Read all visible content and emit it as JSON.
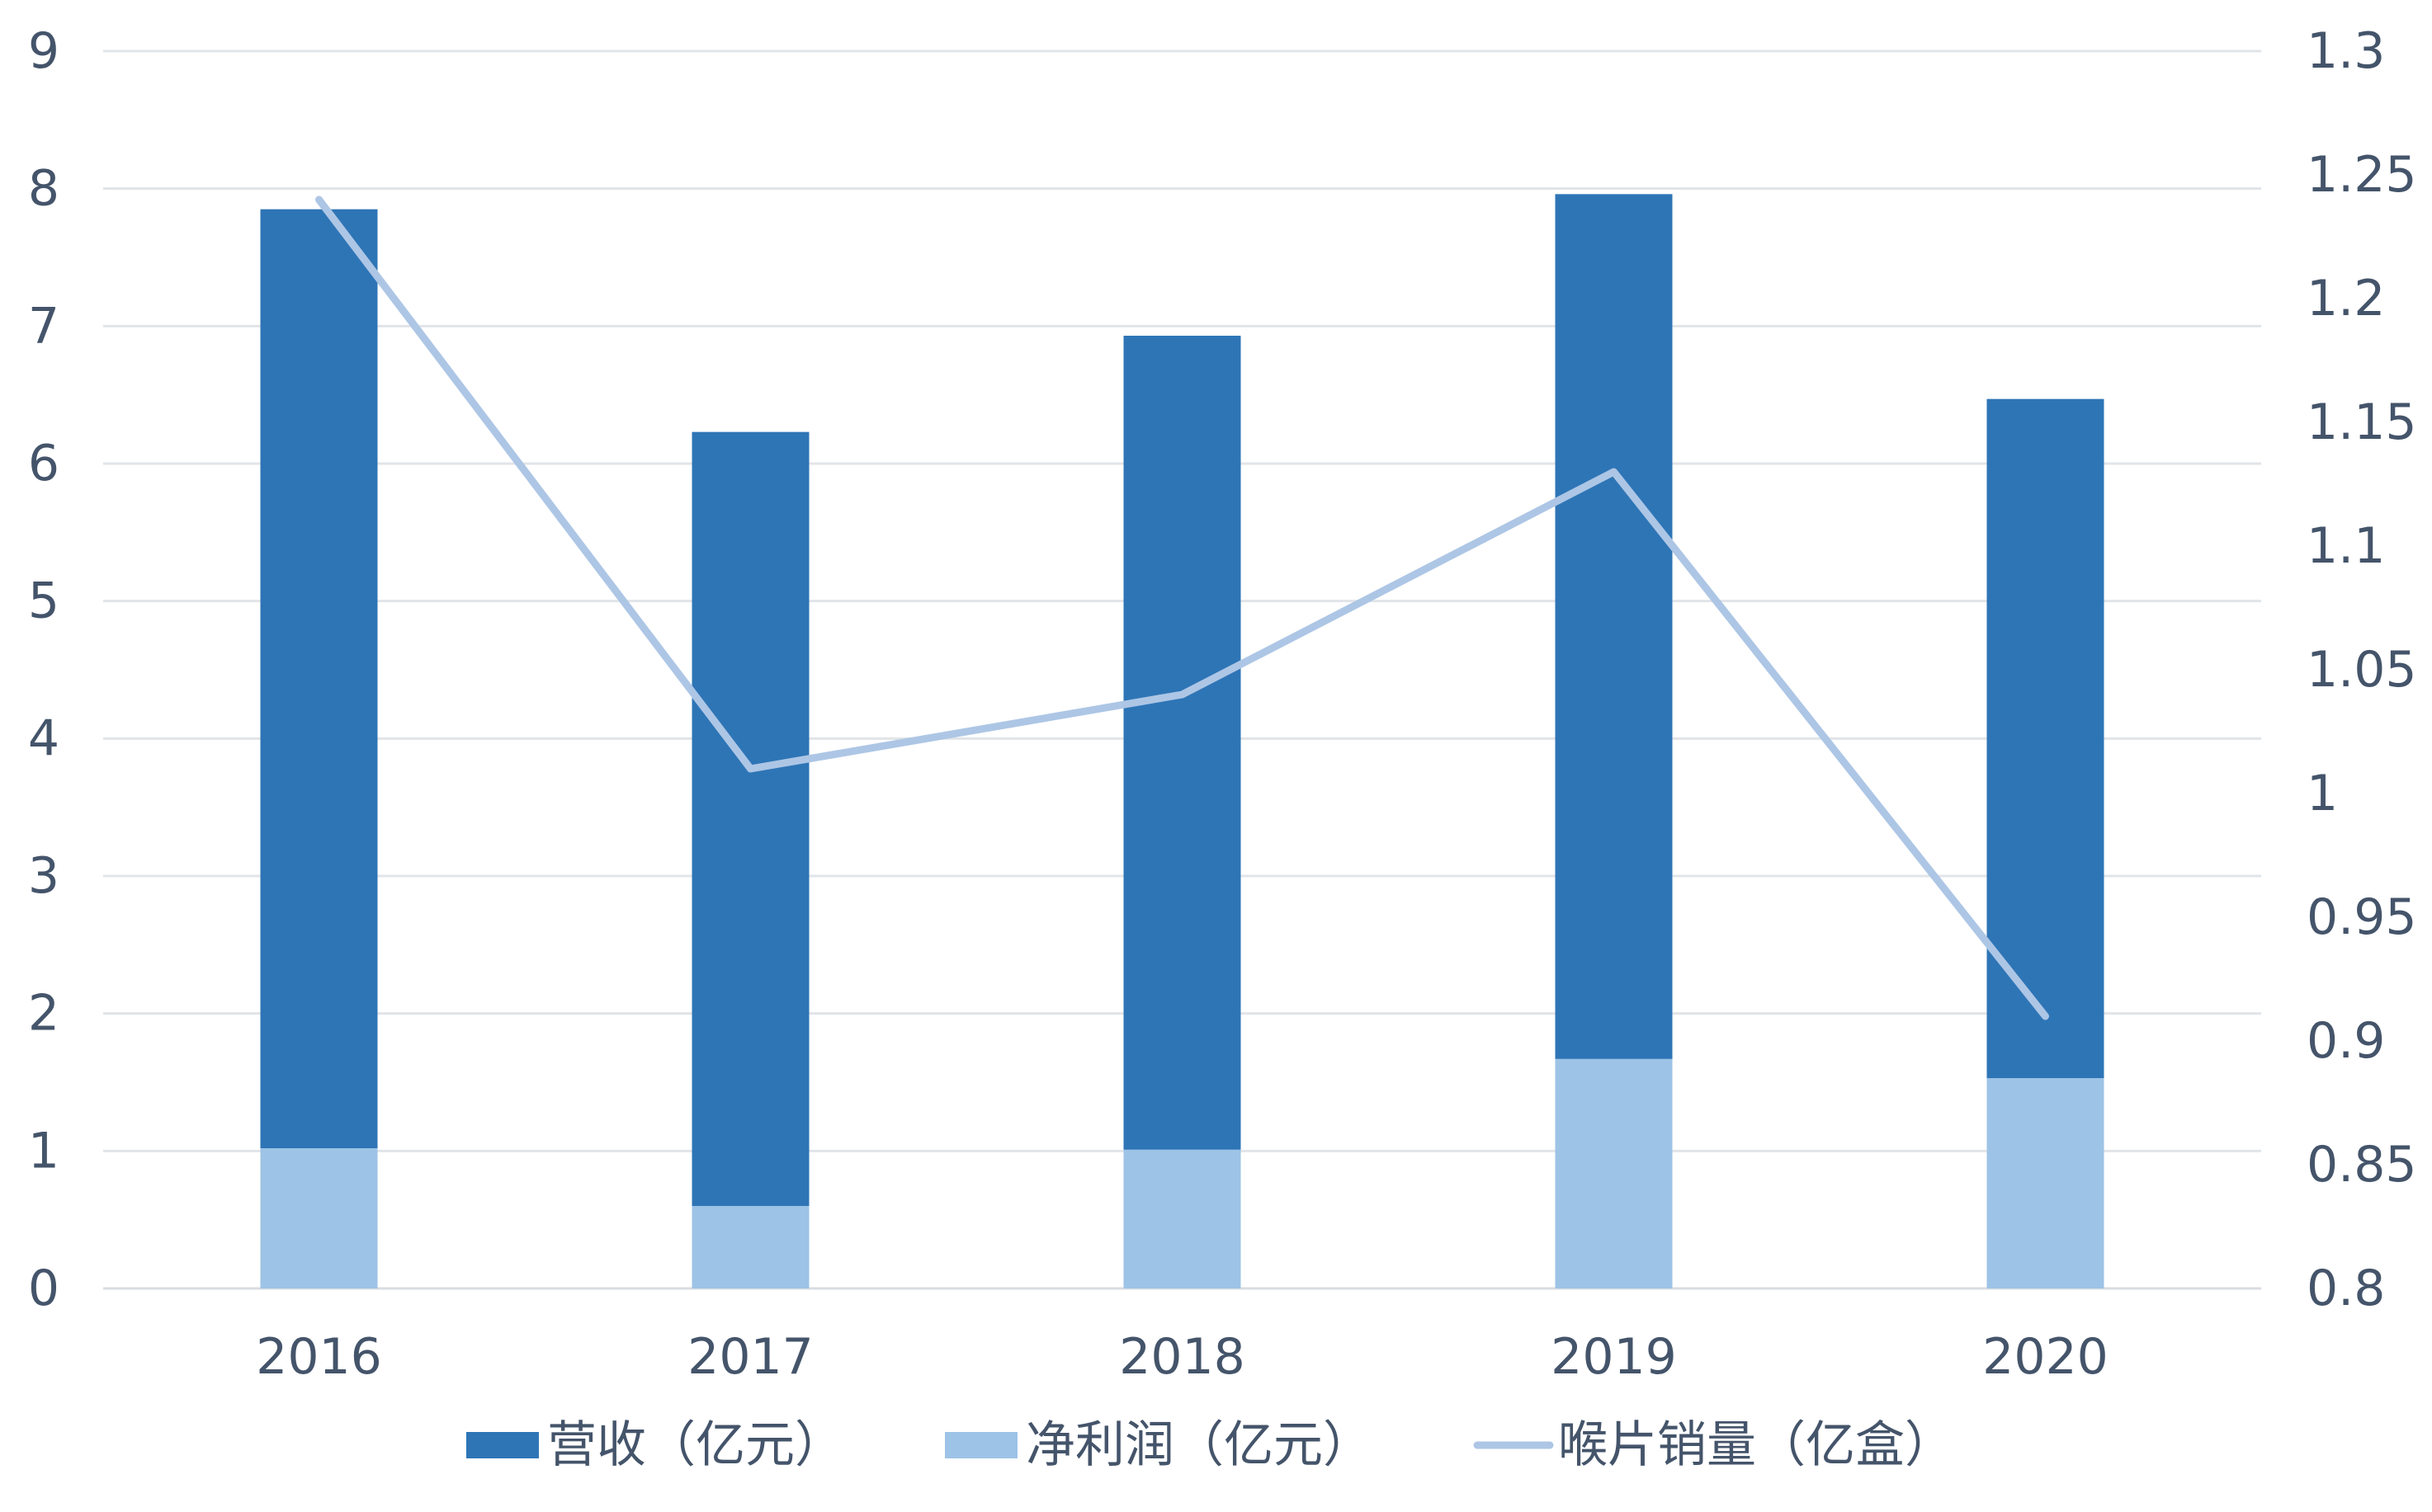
{
  "chart_data": {
    "type": "bar",
    "categories": [
      "2016",
      "2017",
      "2018",
      "2019",
      "2020"
    ],
    "series": [
      {
        "name": "营收（亿元）",
        "kind": "bar",
        "axis": "left",
        "color": "#2e75b6",
        "values": [
          7.85,
          6.23,
          6.93,
          7.96,
          6.47
        ]
      },
      {
        "name": "净利润（亿元）",
        "kind": "bar",
        "axis": "left",
        "color": "#9dc3e6",
        "values": [
          1.02,
          0.6,
          1.01,
          1.67,
          1.53
        ]
      },
      {
        "name": "喉片销量（亿盒）",
        "kind": "line",
        "axis": "right",
        "color": "#adc6e5",
        "values": [
          1.24,
          1.01,
          1.04,
          1.13,
          0.91
        ]
      }
    ],
    "left_axis": {
      "min": 0,
      "max": 9,
      "ticks": [
        "0",
        "1",
        "2",
        "3",
        "4",
        "5",
        "6",
        "7",
        "8",
        "9"
      ]
    },
    "right_axis": {
      "min": 0.8,
      "max": 1.3,
      "ticks": [
        "0.8",
        "0.85",
        "0.9",
        "0.95",
        "1",
        "1.05",
        "1.1",
        "1.15",
        "1.2",
        "1.25",
        "1.3"
      ]
    },
    "grid": true,
    "legend_position": "bottom"
  }
}
